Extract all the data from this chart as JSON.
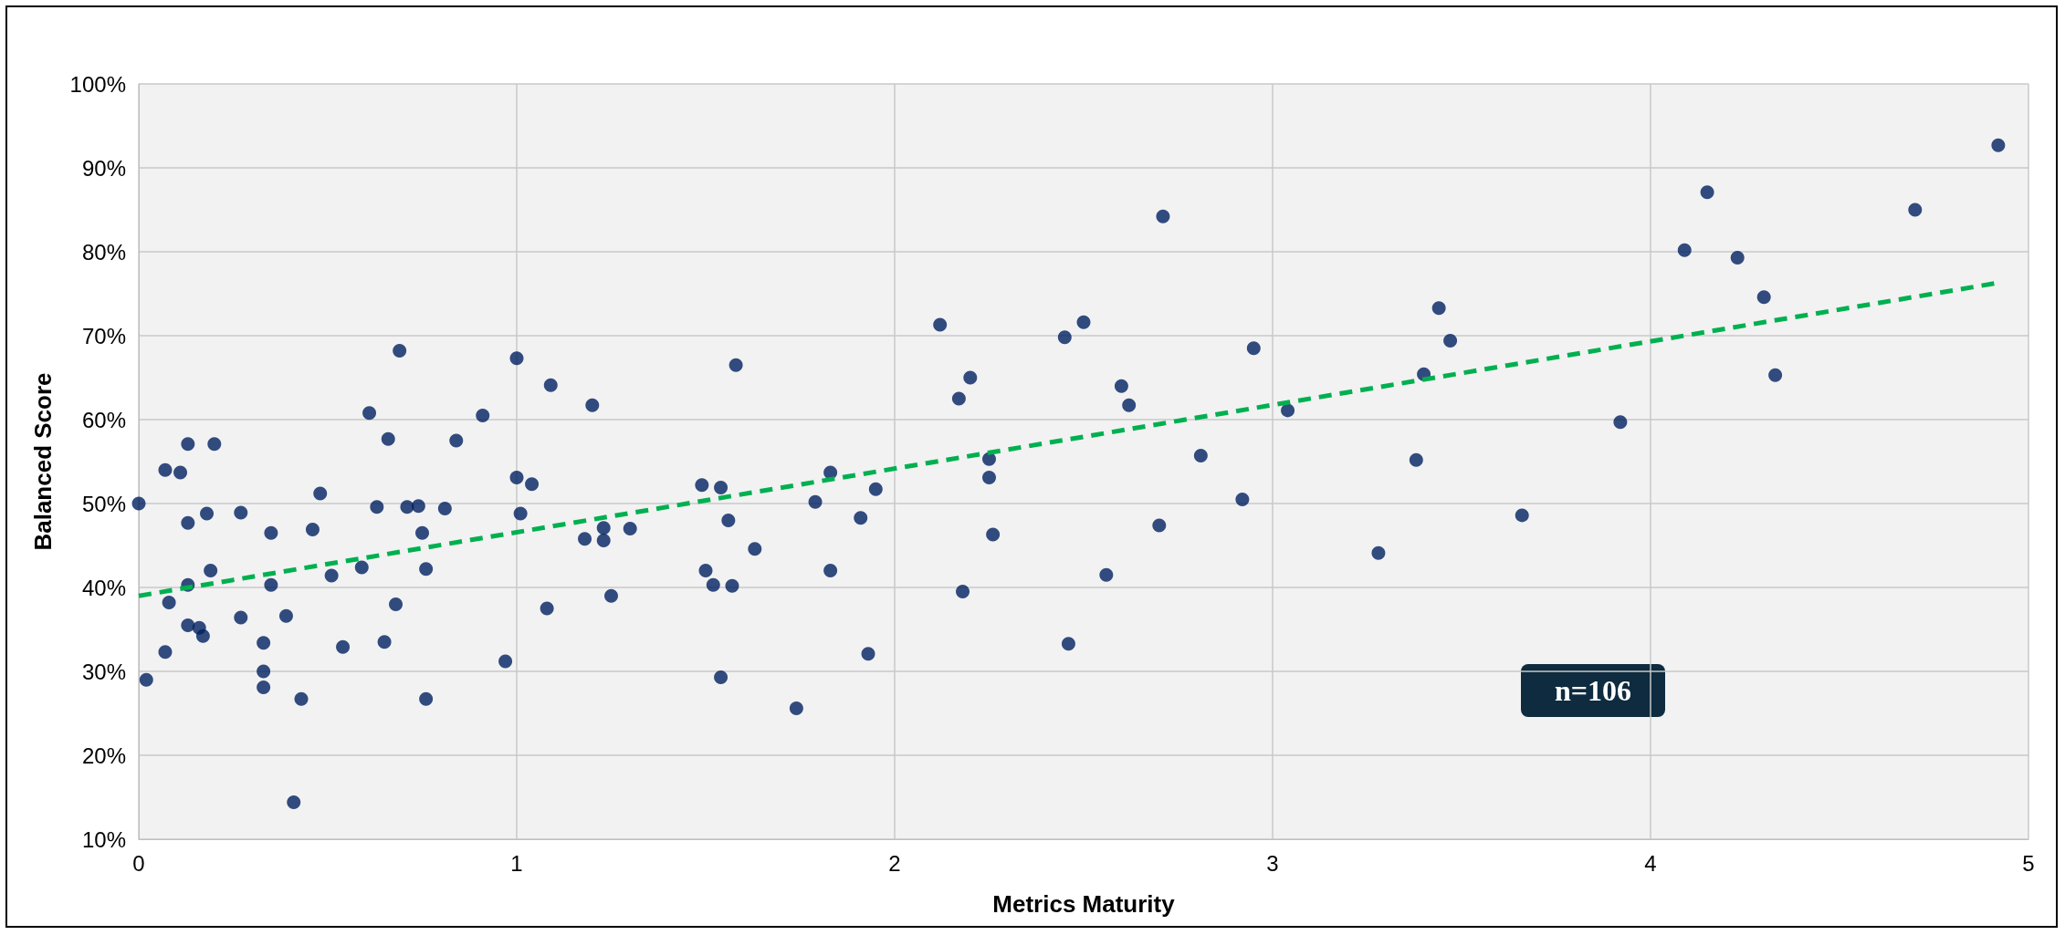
{
  "chart_data": {
    "type": "scatter",
    "xlabel": "Metrics Maturity",
    "ylabel": "Balanced Score",
    "xlim": [
      0,
      5
    ],
    "xticks": [
      0,
      1,
      2,
      3,
      4,
      5
    ],
    "ylim": [
      10,
      100
    ],
    "yticks": [
      {
        "value": 10,
        "label": "10%"
      },
      {
        "value": 20,
        "label": "20%"
      },
      {
        "value": 30,
        "label": "30%"
      },
      {
        "value": 40,
        "label": "40%"
      },
      {
        "value": 50,
        "label": "50%"
      },
      {
        "value": 60,
        "label": "60%"
      },
      {
        "value": 70,
        "label": "70%"
      },
      {
        "value": 80,
        "label": "80%"
      },
      {
        "value": 90,
        "label": "90%"
      },
      {
        "value": 100,
        "label": "100%"
      }
    ],
    "grid": true,
    "marker": "circle",
    "annotations": [
      "n=106"
    ],
    "series": [
      {
        "color": "#002060",
        "x": [
          0.0,
          0.02,
          0.07,
          0.07,
          0.08,
          0.11,
          0.13,
          0.13,
          0.13,
          0.13,
          0.16,
          0.17,
          0.18,
          0.19,
          0.2,
          0.27,
          0.27,
          0.33,
          0.33,
          0.33,
          0.35,
          0.35,
          0.39,
          0.41,
          0.43,
          0.46,
          0.48,
          0.51,
          0.54,
          0.59,
          0.61,
          0.63,
          0.65,
          0.66,
          0.68,
          0.69,
          0.71,
          0.74,
          0.75,
          0.76,
          0.76,
          0.81,
          0.84,
          0.91,
          0.97,
          1.0,
          1.0,
          1.01,
          1.04,
          1.08,
          1.09,
          1.18,
          1.2,
          1.23,
          1.23,
          1.25,
          1.3,
          1.49,
          1.5,
          1.52,
          1.54,
          1.54,
          1.56,
          1.57,
          1.58,
          1.63,
          1.74,
          1.79,
          1.83,
          1.83,
          1.91,
          1.93,
          1.95,
          2.12,
          2.17,
          2.18,
          2.2,
          2.25,
          2.25,
          2.26,
          2.45,
          2.46,
          2.5,
          2.56,
          2.6,
          2.62,
          2.7,
          2.71,
          2.81,
          2.92,
          2.95,
          3.04,
          3.28,
          3.38,
          3.4,
          3.44,
          3.47,
          3.66,
          3.92,
          4.09,
          4.15,
          4.23,
          4.3,
          4.33,
          4.7,
          4.92
        ],
        "values": [
          50,
          29,
          54,
          32.3,
          38.2,
          53.7,
          57.1,
          47.7,
          40.3,
          35.5,
          35.2,
          34.2,
          48.8,
          42,
          57.1,
          48.9,
          36.4,
          33.4,
          30,
          28.1,
          40.3,
          46.5,
          36.6,
          14.4,
          26.7,
          46.9,
          51.2,
          41.4,
          32.9,
          42.4,
          60.8,
          49.6,
          33.5,
          57.7,
          38,
          68.2,
          49.6,
          49.7,
          46.5,
          42.2,
          26.7,
          49.4,
          57.5,
          60.5,
          31.2,
          67.3,
          53.1,
          48.8,
          52.3,
          37.5,
          64.1,
          45.8,
          61.7,
          47.1,
          45.6,
          39,
          47,
          52.2,
          42,
          40.3,
          51.9,
          29.3,
          48,
          40.2,
          66.5,
          44.6,
          25.6,
          50.2,
          53.7,
          42,
          48.3,
          32.1,
          51.7,
          71.3,
          62.5,
          39.5,
          65,
          55.3,
          53.1,
          46.3,
          69.8,
          33.3,
          71.6,
          41.5,
          64,
          61.7,
          47.4,
          84.2,
          55.7,
          50.5,
          68.5,
          61.1,
          44.1,
          55.2,
          65.4,
          73.3,
          69.4,
          48.6,
          59.7,
          80.2,
          87.1,
          79.3,
          74.6,
          65.3,
          85,
          92.7
        ]
      },
      {
        "type": "line",
        "color": "#00b050",
        "line_style": "dashed",
        "marker": "none",
        "x": [
          0,
          4.92
        ],
        "values": [
          39,
          76.3
        ]
      }
    ]
  }
}
